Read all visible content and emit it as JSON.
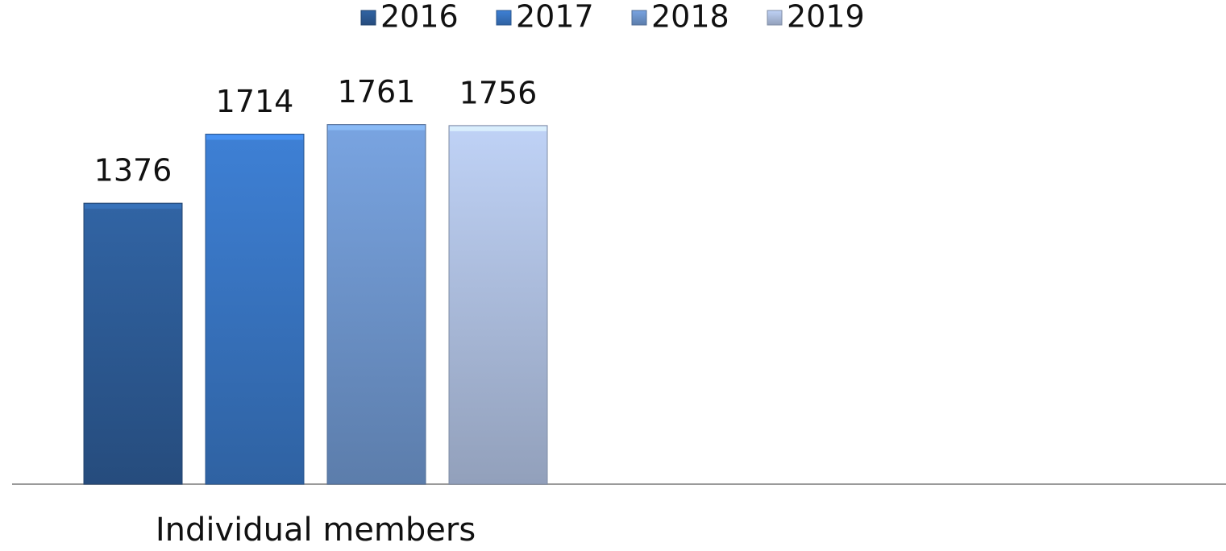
{
  "chart_data": {
    "type": "bar",
    "categories": [
      "Individual members",
      null
    ],
    "series": [
      {
        "name": "2016",
        "color": "#2f5f9c",
        "values": [
          1376,
          null
        ]
      },
      {
        "name": "2017",
        "color": "#3b7acb",
        "values": [
          1714,
          null
        ]
      },
      {
        "name": "2018",
        "color": "#739cd6",
        "values": [
          1761,
          null
        ]
      },
      {
        "name": "2019",
        "color": "#b6c8ea",
        "values": [
          1756,
          null
        ]
      }
    ],
    "ylim": [
      0,
      2000
    ],
    "legend": "top"
  }
}
